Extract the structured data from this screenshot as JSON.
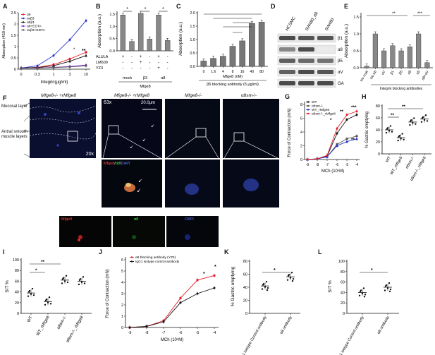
{
  "panels": {
    "A": {
      "label": "A",
      "ylabel": "Absorption (450 nm)",
      "xlabel": "Integrin(µg/ml)",
      "yticks": [
        "0",
        "0.5",
        "1",
        "1.5",
        "2",
        "2.5"
      ],
      "xticks": [
        "0",
        "0.3",
        "1",
        "3",
        "10"
      ],
      "legend": [
        "α8",
        "ανβ3",
        "α5β1",
        "α8+EDTA",
        "ανβ3+EDTA"
      ],
      "sig": "**",
      "sig_small": "*"
    },
    "B": {
      "label": "B",
      "ylabel": "Absorption (a.u.)",
      "yticks": [
        "0.0",
        "0.5",
        "1.0",
        "1.5"
      ],
      "rows": [
        {
          "name": "ALULA",
          "vals": [
            "+",
            "-",
            "+",
            "-",
            "+",
            "-"
          ]
        },
        {
          "name": "LM609",
          "vals": [
            "-",
            "-",
            "+",
            "-",
            "-",
            "-"
          ]
        },
        {
          "name": "YZ3",
          "vals": [
            "-",
            "-",
            "-",
            "-",
            "+",
            "-"
          ]
        }
      ],
      "groups": [
        "mock",
        "β3",
        "α8"
      ],
      "footer": "Mfge8",
      "sig": "*"
    },
    "C": {
      "label": "C",
      "ylabel": "Absorption (a.u.)",
      "yticks": [
        "0.0",
        "0.5",
        "1.0",
        "1.5",
        "2.0"
      ],
      "xticks": [
        "0",
        "1.6",
        "4",
        "8",
        "16",
        "40",
        "80"
      ],
      "xlabel": "Mfge8 (nM)",
      "footer": "β5 blocking antibody (5 µg/ml)"
    },
    "D": {
      "label": "D",
      "columns": [
        "HCSMC",
        "SW480_α8",
        "SW480"
      ],
      "rows": [
        "β1",
        "α8",
        "β5",
        "αV",
        "GAPDH"
      ]
    },
    "E": {
      "label": "E",
      "ylabel": "Absorption (a.u.)",
      "yticks": [
        "0.0",
        "0.5",
        "1.0",
        "1.5"
      ],
      "xticks": [
        "No coat",
        "No Ab",
        "αV",
        "β1",
        "β5",
        "α8",
        "α5",
        "α8+αV"
      ],
      "footer": "Integrin blocking antibodies",
      "sig1": "**",
      "sig2": "***"
    },
    "F": {
      "label": "F",
      "side_labels": [
        "Mucosal layer",
        "Antral smooth muscle layers"
      ],
      "col_titles": [
        "Mfge8-/- +rMfge8",
        "Mfge8-/- +rMfge8",
        "Mfge8-/-",
        "α8sm-/-"
      ],
      "mag1": "20x",
      "mag2": "63x",
      "scale": "20.0µm",
      "stain": [
        "Mfge8",
        "/",
        "α8",
        "/",
        "DAPI"
      ],
      "channels": [
        "Mfge8",
        "α8",
        "DAPI"
      ]
    },
    "G": {
      "label": "G",
      "ylabel": "Force of Contraction (mN)",
      "xlabel": "MCh (10ⁿM)",
      "yticks": [
        "0",
        "2",
        "4",
        "6",
        "8"
      ],
      "xticks": [
        "-9",
        "-8",
        "-7",
        "-6",
        "-5",
        "-4"
      ],
      "legend": [
        "WT",
        "α8sm-/-",
        "WT_rMfge8",
        "α8sm-/-_rMfge8"
      ],
      "sig1": "**",
      "sig2": "***",
      "sig3": "*"
    },
    "H": {
      "label": "H",
      "ylabel": "% Gastric emptying",
      "yticks": [
        "0",
        "20",
        "40",
        "60",
        "80"
      ],
      "xticks": [
        "WT",
        "WT_rMfge8",
        "α8sm-/-",
        "α8sm-/-_rMfge8"
      ],
      "sig1": "**",
      "sig2": "**"
    },
    "I": {
      "label": "I",
      "ylabel": "SIT %",
      "yticks": [
        "0",
        "20",
        "40",
        "60",
        "80",
        "100"
      ],
      "xticks": [
        "WT",
        "WT_rMfge8",
        "α8sm-/-",
        "α8sm-/-_rMfge8"
      ],
      "sig1": "**",
      "sig2": "*"
    },
    "J": {
      "label": "J",
      "ylabel": "Force of Contraction (mN)",
      "xlabel": "MCh (10ⁿM)",
      "yticks": [
        "0",
        "1",
        "2",
        "3",
        "4",
        "5",
        "6"
      ],
      "xticks": [
        "-9",
        "-8",
        "-7",
        "-6",
        "-5",
        "-4"
      ],
      "legend": [
        "α8 blocking antibody (YZ3)",
        "IgG1 isotype control antibody"
      ],
      "sig": "*"
    },
    "K": {
      "label": "K",
      "ylabel": "% Gastric emptying",
      "yticks": [
        "0",
        "20",
        "40",
        "60",
        "80"
      ],
      "xticks": [
        "IgG1 isotype Control antibody",
        "α8 antibody"
      ],
      "sig": "*"
    },
    "L": {
      "label": "L",
      "ylabel": "SIT %",
      "yticks": [
        "0",
        "20",
        "40",
        "60",
        "80",
        "100"
      ],
      "xticks": [
        "IgG1 isotype Control antibody",
        "α8 antibody"
      ],
      "sig": "*"
    }
  },
  "chart_data": [
    {
      "type": "line",
      "panel": "A",
      "x": [
        "0",
        "0.3",
        "1",
        "3",
        "10"
      ],
      "ylim": [
        0,
        2.5
      ],
      "series": [
        {
          "name": "α8",
          "values": [
            0.05,
            0.08,
            0.2,
            0.45,
            0.75
          ],
          "color": "#e0202a"
        },
        {
          "name": "ανβ3",
          "values": [
            0.05,
            0.15,
            0.6,
            1.3,
            2.15
          ],
          "color": "#2233cc"
        },
        {
          "name": "α5β1",
          "values": [
            0.05,
            0.07,
            0.15,
            0.35,
            0.6
          ],
          "color": "#111111"
        },
        {
          "name": "α8+EDTA",
          "values": [
            0.04,
            0.05,
            0.08,
            0.12,
            0.18
          ],
          "color": "#8a2be2"
        },
        {
          "name": "ανβ3+EDTA",
          "values": [
            0.04,
            0.05,
            0.07,
            0.1,
            0.15
          ],
          "color": "#555555"
        }
      ]
    },
    {
      "type": "bar",
      "panel": "B",
      "ylim": [
        0,
        1.6
      ],
      "values": [
        1.45,
        0.38,
        1.52,
        0.48,
        1.45,
        0.42
      ]
    },
    {
      "type": "bar",
      "panel": "C",
      "ylim": [
        0,
        2.0
      ],
      "categories": [
        "0",
        "1.6",
        "4",
        "8",
        "16",
        "40",
        "80"
      ],
      "values": [
        0.2,
        0.3,
        0.38,
        0.75,
        0.95,
        1.6,
        1.65
      ]
    },
    {
      "type": "bar",
      "panel": "E",
      "ylim": [
        0,
        1.5
      ],
      "categories": [
        "No coat",
        "No Ab",
        "αV",
        "β1",
        "β5",
        "α8",
        "α5",
        "α8+αV"
      ],
      "values": [
        0.05,
        1.0,
        0.5,
        0.65,
        0.5,
        0.62,
        1.0,
        0.15
      ]
    },
    {
      "type": "line",
      "panel": "G",
      "x": [
        "-9",
        "-8",
        "-7",
        "-6",
        "-5",
        "-4"
      ],
      "ylim": [
        0,
        8
      ],
      "series": [
        {
          "name": "WT",
          "values": [
            0,
            0.1,
            0.5,
            3.8,
            5.8,
            6.5
          ],
          "color": "#111111"
        },
        {
          "name": "α8sm-/-",
          "values": [
            0,
            0.1,
            0.4,
            2.2,
            3.0,
            3.4
          ],
          "color": "#555555"
        },
        {
          "name": "WT_rMfge8",
          "values": [
            0,
            0.1,
            0.4,
            2.0,
            2.6,
            3.0
          ],
          "color": "#2233cc"
        },
        {
          "name": "α8sm-/-_rMfge8",
          "values": [
            0,
            0.1,
            0.6,
            4.5,
            6.5,
            7.0
          ],
          "color": "#e0202a"
        }
      ]
    },
    {
      "type": "scatter",
      "panel": "H",
      "ylim": [
        0,
        80
      ],
      "categories": [
        "WT",
        "WT_rMfge8",
        "α8sm-/-",
        "α8sm-/-_rMfge8"
      ],
      "means": [
        40,
        27,
        53,
        58
      ]
    },
    {
      "type": "scatter",
      "panel": "I",
      "ylim": [
        0,
        100
      ],
      "categories": [
        "WT",
        "WT_rMfge8",
        "α8sm-/-",
        "α8sm-/-_rMfge8"
      ],
      "means": [
        38,
        22,
        62,
        60
      ]
    },
    {
      "type": "line",
      "panel": "J",
      "x": [
        "-9",
        "-8",
        "-7",
        "-6",
        "-5",
        "-4"
      ],
      "ylim": [
        0,
        6
      ],
      "series": [
        {
          "name": "α8 blocking antibody (YZ3)",
          "values": [
            0,
            0.1,
            0.6,
            2.6,
            4.2,
            4.6
          ],
          "color": "#e0202a"
        },
        {
          "name": "IgG1 isotype control antibody",
          "values": [
            0,
            0.1,
            0.5,
            2.2,
            3.0,
            3.5
          ],
          "color": "#111111"
        }
      ]
    },
    {
      "type": "scatter",
      "panel": "K",
      "ylim": [
        0,
        80
      ],
      "categories": [
        "IgG1 isotype Control antibody",
        "α8 antibody"
      ],
      "means": [
        42,
        56
      ]
    },
    {
      "type": "scatter",
      "panel": "L",
      "ylim": [
        0,
        100
      ],
      "categories": [
        "IgG1 isotype Control antibody",
        "α8 antibody"
      ],
      "means": [
        40,
        50
      ]
    }
  ]
}
